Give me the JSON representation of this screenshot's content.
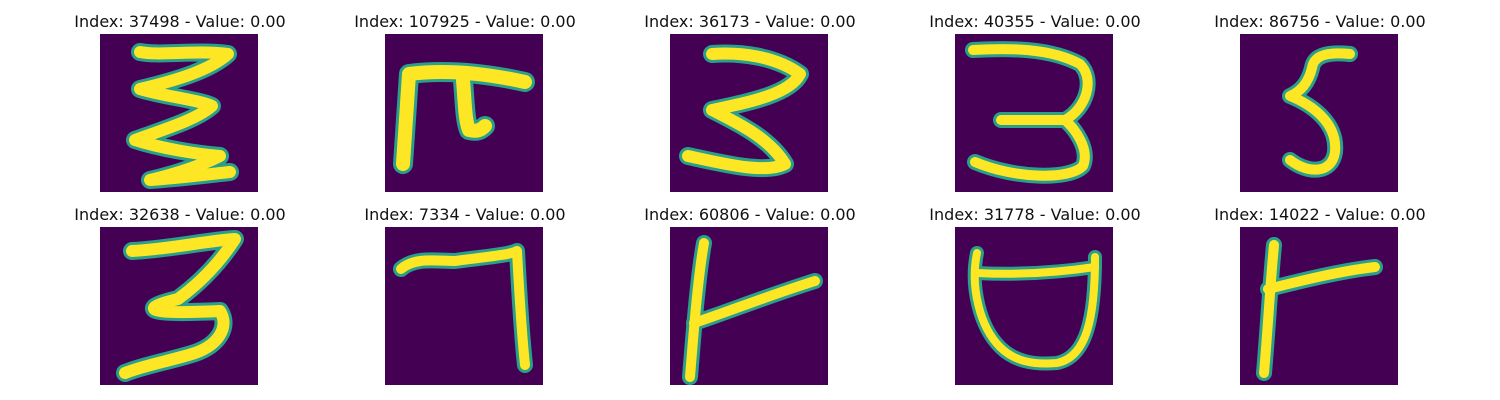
{
  "panels": [
    {
      "index_label": "Index: 37498 - Value: 0.00",
      "glyph": "handwritten-e-icon",
      "colors": {
        "background": "#440154",
        "stroke": "#fde725",
        "edge": "#2a9f8b"
      }
    },
    {
      "index_label": "Index: 107925 - Value: 0.00",
      "glyph": "handwritten-pi-icon",
      "colors": {
        "background": "#440154",
        "stroke": "#fde725",
        "edge": "#2a9f8b"
      }
    },
    {
      "index_label": "Index: 36173 - Value: 0.00",
      "glyph": "handwritten-3-icon",
      "colors": {
        "background": "#440154",
        "stroke": "#fde725",
        "edge": "#2a9f8b"
      }
    },
    {
      "index_label": "Index: 40355 - Value: 0.00",
      "glyph": "handwritten-3-icon",
      "colors": {
        "background": "#440154",
        "stroke": "#fde725",
        "edge": "#2a9f8b"
      }
    },
    {
      "index_label": "Index: 86756 - Value: 0.00",
      "glyph": "handwritten-5-icon",
      "colors": {
        "background": "#440154",
        "stroke": "#fde725",
        "edge": "#2a9f8b"
      }
    },
    {
      "index_label": "Index: 32638 - Value: 0.00",
      "glyph": "handwritten-3-icon",
      "colors": {
        "background": "#440154",
        "stroke": "#fde725",
        "edge": "#2a9f8b"
      }
    },
    {
      "index_label": "Index: 7334 - Value: 0.00",
      "glyph": "handwritten-7-icon",
      "colors": {
        "background": "#440154",
        "stroke": "#fde725",
        "edge": "#2a9f8b"
      }
    },
    {
      "index_label": "Index: 60806 - Value: 0.00",
      "glyph": "handwritten-t-icon",
      "colors": {
        "background": "#440154",
        "stroke": "#fde725",
        "edge": "#2a9f8b"
      }
    },
    {
      "index_label": "Index: 31778 - Value: 0.00",
      "glyph": "handwritten-u-icon",
      "colors": {
        "background": "#440154",
        "stroke": "#fde725",
        "edge": "#2a9f8b"
      }
    },
    {
      "index_label": "Index: 14022 - Value: 0.00",
      "glyph": "handwritten-r-icon",
      "colors": {
        "background": "#440154",
        "stroke": "#fde725",
        "edge": "#2a9f8b"
      }
    }
  ]
}
